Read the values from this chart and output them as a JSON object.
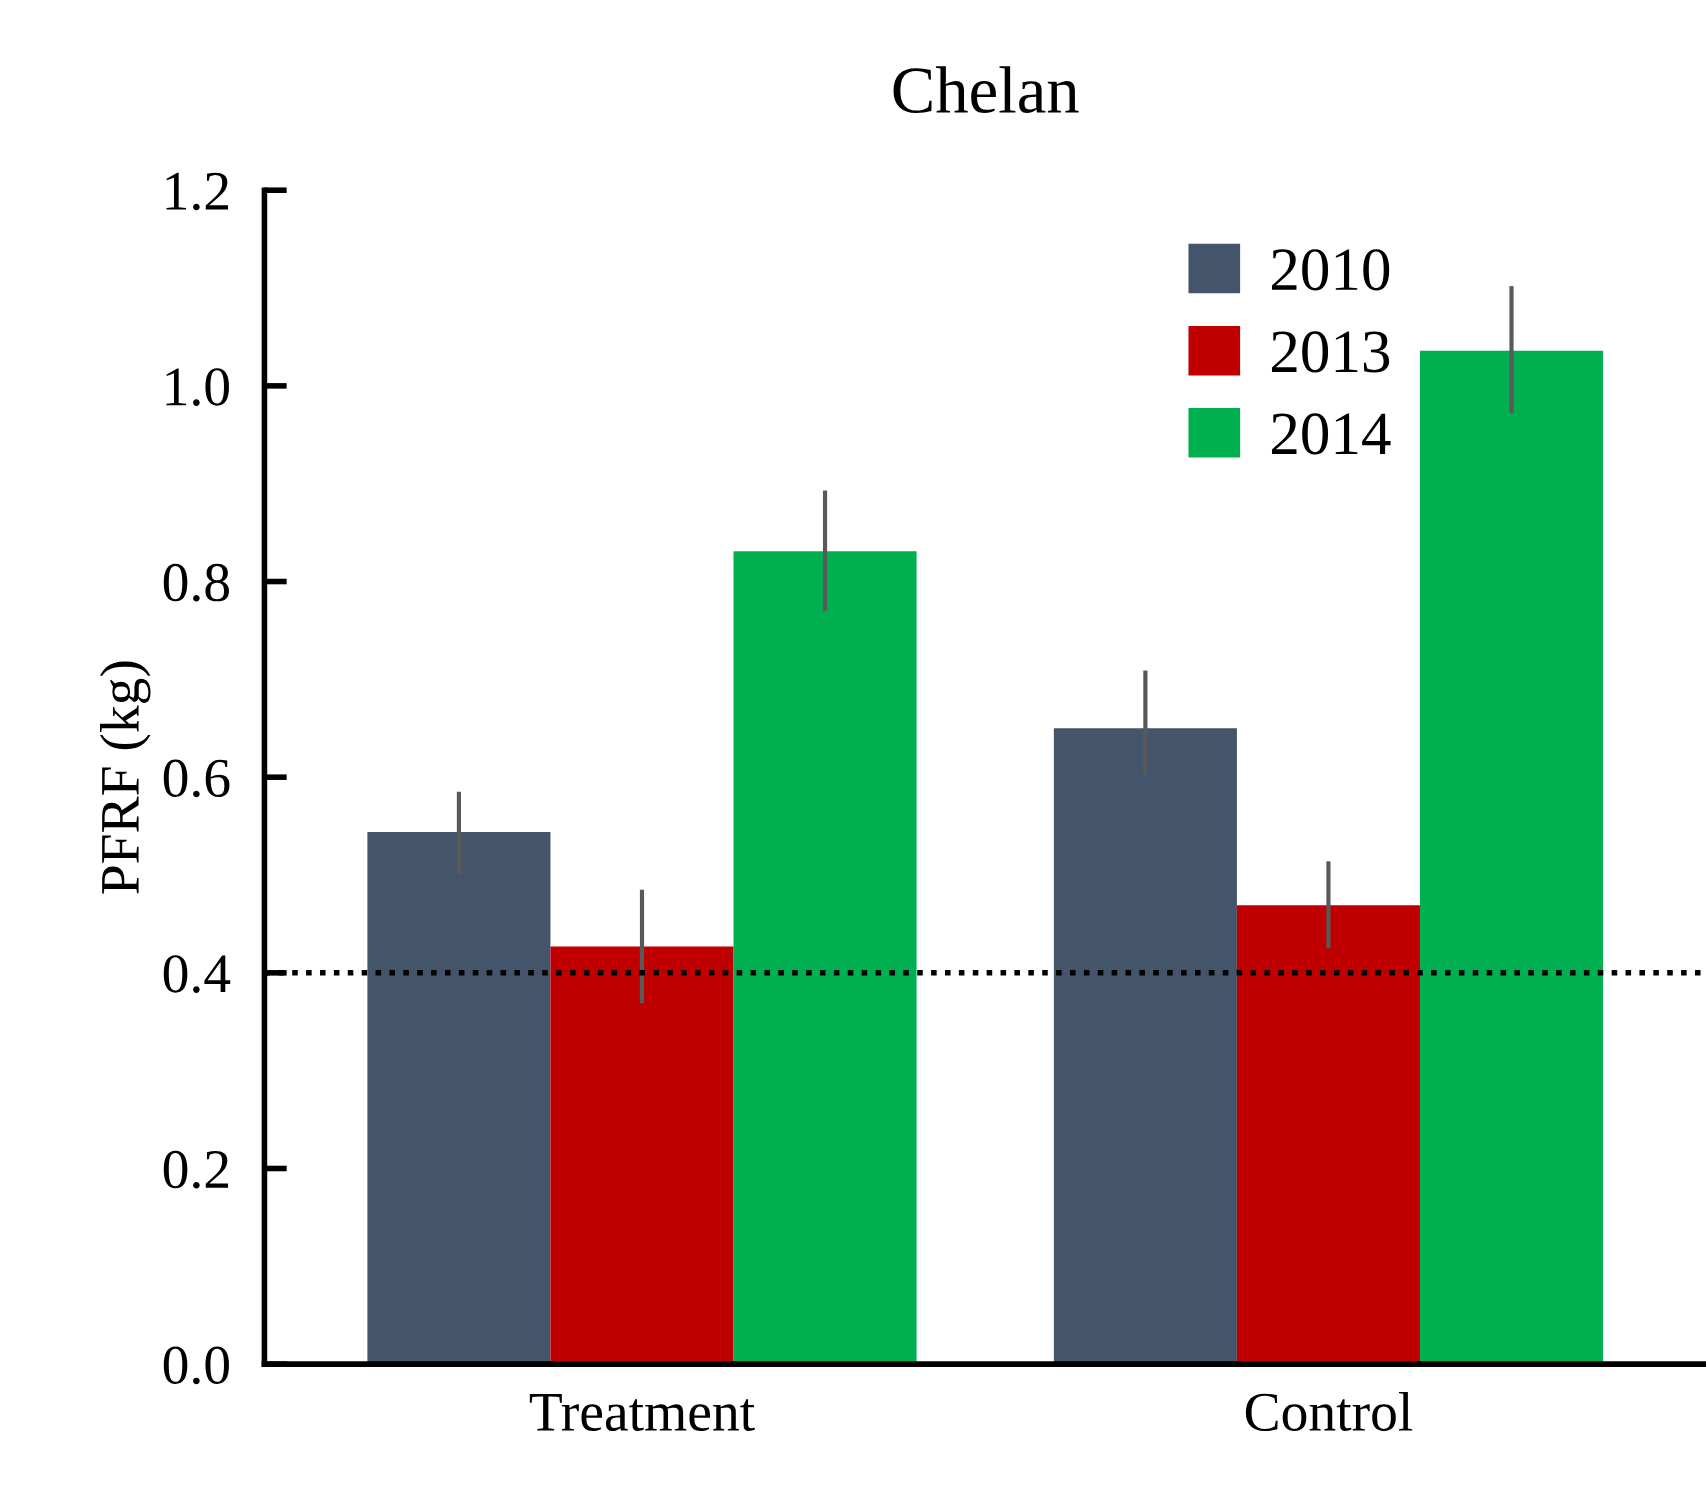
{
  "chart_data": {
    "type": "bar",
    "title": "Chelan",
    "ylabel": "PFRF (kg)",
    "categories": [
      "Treatment",
      "Control"
    ],
    "series": [
      {
        "name": "2010",
        "color": "#44546a",
        "values": [
          0.544,
          0.65
        ],
        "errors": [
          [
            0.501,
            0.585
          ],
          [
            0.602,
            0.709
          ]
        ]
      },
      {
        "name": "2013",
        "color": "#c00000",
        "values": [
          0.427,
          0.469
        ],
        "errors": [
          [
            0.369,
            0.485
          ],
          [
            0.425,
            0.514
          ]
        ]
      },
      {
        "name": "2014",
        "color": "#00b050",
        "values": [
          0.831,
          1.036
        ],
        "errors": [
          [
            0.77,
            0.893
          ],
          [
            0.972,
            1.102
          ]
        ]
      }
    ],
    "ylim": [
      0,
      1.2
    ],
    "yticks": [
      {
        "value": 0,
        "label": "0.0"
      },
      0.2,
      0.4,
      0.6,
      0.8,
      {
        "value": 1,
        "label": "1.0"
      },
      1.2
    ],
    "ref_lines": [
      {
        "axis": "y",
        "value": 0.4,
        "color": "#000000",
        "line_style": "dotted"
      }
    ],
    "legend": "top right",
    "grid": false
  }
}
